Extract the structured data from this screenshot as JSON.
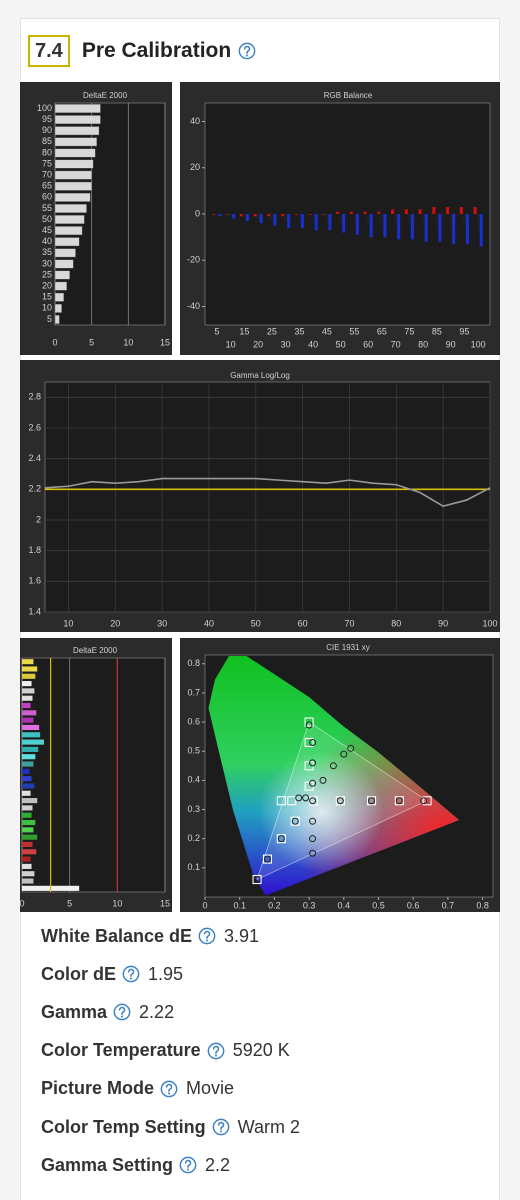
{
  "header": {
    "number": "7.4",
    "title": "Pre Calibration"
  },
  "chart_data": [
    {
      "type": "hbar",
      "title": "DeltaE 2000",
      "categories": [
        100,
        95,
        90,
        85,
        80,
        75,
        70,
        65,
        60,
        55,
        50,
        45,
        40,
        35,
        30,
        25,
        20,
        15,
        10,
        5
      ],
      "values": [
        6.2,
        6.2,
        6.0,
        5.7,
        5.5,
        5.2,
        5.0,
        5.0,
        4.8,
        4.3,
        4.0,
        3.7,
        3.3,
        2.8,
        2.5,
        2.0,
        1.6,
        1.2,
        0.9,
        0.6
      ],
      "color": "#d8d8d8",
      "xlim": [
        0,
        15
      ],
      "xticks": [
        0,
        5,
        10,
        15
      ]
    },
    {
      "type": "grouped_bar",
      "title": "RGB Balance",
      "categories": [
        5,
        10,
        15,
        20,
        25,
        30,
        35,
        40,
        45,
        50,
        55,
        60,
        65,
        70,
        75,
        80,
        85,
        90,
        95,
        100
      ],
      "series": [
        {
          "color": "#d01010",
          "values": [
            0,
            0,
            -1,
            -1,
            -1,
            -1,
            0,
            0,
            0,
            1,
            1,
            1,
            1,
            2,
            2,
            2,
            3,
            3,
            3,
            3
          ]
        },
        {
          "color": "#202020",
          "values": [
            -1,
            -1,
            -2,
            -2,
            -3,
            -3,
            -3,
            -3,
            -4,
            -4,
            -4,
            -4,
            -5,
            -5,
            -5,
            -5,
            -5,
            -6,
            -6,
            -6
          ]
        },
        {
          "color": "#1a2fd0",
          "values": [
            -1,
            -2,
            -3,
            -4,
            -5,
            -6,
            -6,
            -7,
            -7,
            -8,
            -9,
            -10,
            -10,
            -11,
            -11,
            -12,
            -12,
            -13,
            -13,
            -14
          ]
        }
      ],
      "ylim": [
        -48,
        48
      ],
      "yticks": [
        -40,
        -20,
        0,
        20,
        40
      ]
    },
    {
      "type": "line",
      "title": "Gamma Log/Log",
      "x": [
        5,
        10,
        15,
        20,
        25,
        30,
        35,
        40,
        45,
        50,
        55,
        60,
        65,
        70,
        75,
        80,
        85,
        90,
        95,
        100
      ],
      "values": [
        2.21,
        2.22,
        2.25,
        2.24,
        2.25,
        2.27,
        2.27,
        2.27,
        2.27,
        2.27,
        2.26,
        2.25,
        2.24,
        2.26,
        2.24,
        2.23,
        2.18,
        2.09,
        2.13,
        2.21
      ],
      "color": "#9a9a9a",
      "target": 2.2,
      "target_color": "#d8c000",
      "xlim": [
        5,
        100
      ],
      "xticks": [
        10,
        20,
        30,
        40,
        50,
        60,
        70,
        80,
        90,
        100
      ],
      "ylim": [
        1.4,
        2.9
      ],
      "yticks": [
        1.4,
        1.6,
        1.8,
        2,
        2.2,
        2.4,
        2.6,
        2.8
      ]
    },
    {
      "type": "hbar_colored",
      "title": "DeltaE 2000",
      "values": [
        1.2,
        1.6,
        1.4,
        1.0,
        1.3,
        1.1,
        0.9,
        1.5,
        1.2,
        1.8,
        1.9,
        2.3,
        1.7,
        1.4,
        1.2,
        0.8,
        1.0,
        1.3,
        0.9,
        1.6,
        1.1,
        1.0,
        1.4,
        1.2,
        1.6,
        1.1,
        1.5,
        0.9,
        1.0,
        1.3,
        1.2,
        6.0
      ],
      "colors": [
        "#e8d84a",
        "#e8d84a",
        "#d8c83a",
        "#f0f0f0",
        "#d0d0d0",
        "#e0e0e0",
        "#c040c0",
        "#d060d0",
        "#b030b0",
        "#e070e0",
        "#40c0c0",
        "#50d0d0",
        "#30b0b0",
        "#60e0e0",
        "#40a0a0",
        "#2030c0",
        "#3040d0",
        "#2040b0",
        "#e0e0e0",
        "#c0c0c0",
        "#d0d0d0",
        "#30b030",
        "#40c040",
        "#50d050",
        "#30a030",
        "#c03030",
        "#d04040",
        "#b02020",
        "#e0e0e0",
        "#d0d0d0",
        "#c0c0c0",
        "#f0f0f0"
      ],
      "thresholds": [
        3,
        10
      ],
      "threshold_colors": [
        "#d8c000",
        "#c03030"
      ],
      "xlim": [
        0,
        15
      ],
      "xticks": [
        0,
        5,
        10,
        15
      ]
    },
    {
      "type": "cie",
      "title": "CIE 1931 xy",
      "gamut_x": [
        0.64,
        0.3,
        0.15
      ],
      "gamut_y": [
        0.33,
        0.6,
        0.06
      ],
      "targets_x": [
        0.313,
        0.39,
        0.48,
        0.56,
        0.64,
        0.3,
        0.3,
        0.3,
        0.3,
        0.26,
        0.22,
        0.18,
        0.15,
        0.22,
        0.25
      ],
      "targets_y": [
        0.329,
        0.33,
        0.33,
        0.33,
        0.33,
        0.38,
        0.45,
        0.53,
        0.6,
        0.26,
        0.2,
        0.13,
        0.06,
        0.33,
        0.33
      ],
      "measured_x": [
        0.31,
        0.39,
        0.48,
        0.56,
        0.63,
        0.31,
        0.31,
        0.31,
        0.3,
        0.26,
        0.22,
        0.18,
        0.15,
        0.27,
        0.29,
        0.34,
        0.37,
        0.4,
        0.42,
        0.31,
        0.31,
        0.31
      ],
      "measured_y": [
        0.33,
        0.33,
        0.33,
        0.33,
        0.33,
        0.39,
        0.46,
        0.53,
        0.59,
        0.26,
        0.2,
        0.13,
        0.06,
        0.34,
        0.34,
        0.4,
        0.45,
        0.49,
        0.51,
        0.26,
        0.2,
        0.15
      ],
      "xlim": [
        0,
        0.83
      ],
      "xticks": [
        0,
        0.1,
        0.2,
        0.3,
        0.4,
        0.5,
        0.6,
        0.7,
        0.8
      ],
      "ylim": [
        0,
        0.83
      ],
      "yticks": [
        0.1,
        0.2,
        0.3,
        0.4,
        0.5,
        0.6,
        0.7,
        0.8
      ]
    }
  ],
  "results": [
    {
      "label": "White Balance dE",
      "value": "3.91"
    },
    {
      "label": "Color dE",
      "value": "1.95"
    },
    {
      "label": "Gamma",
      "value": "2.22"
    },
    {
      "label": "Color Temperature",
      "value": "5920 K"
    },
    {
      "label": "Picture Mode",
      "value": "Movie"
    },
    {
      "label": "Color Temp Setting",
      "value": "Warm 2"
    },
    {
      "label": "Gamma Setting",
      "value": "2.2"
    }
  ]
}
